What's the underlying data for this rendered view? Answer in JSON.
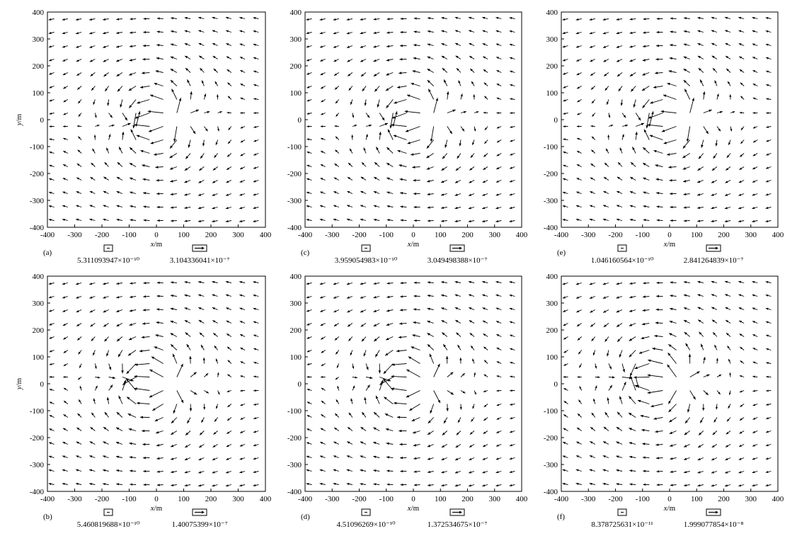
{
  "chart_data": [
    {
      "type": "quiver",
      "panel_label": "(a)",
      "xlabel": "x/m",
      "ylabel": "y/m",
      "xlim": [
        -400,
        400
      ],
      "ylim": [
        -400,
        400
      ],
      "xticks": [
        "-400",
        "-300",
        "-200",
        "-100",
        "0",
        "100",
        "200",
        "300",
        "400"
      ],
      "yticks": [
        "400",
        "300",
        "200",
        "100",
        "0",
        "-100",
        "-200",
        "-300",
        "-400"
      ],
      "min_vector_label": "5.311093947×10⁻¹⁰",
      "max_vector_label": "3.104336041×10⁻⁷",
      "sink_x": -65,
      "sink_y": -10,
      "source_x": 65,
      "source_y": 10,
      "grid_spacing": 50
    },
    {
      "type": "quiver",
      "panel_label": "(c)",
      "xlabel": "x/m",
      "ylabel": "",
      "xlim": [
        -400,
        400
      ],
      "ylim": [
        -400,
        400
      ],
      "xticks": [
        "-400",
        "-300",
        "-200",
        "-100",
        "0",
        "100",
        "200",
        "300",
        "400"
      ],
      "yticks": [
        "400",
        "300",
        "200",
        "100",
        "0",
        "-100",
        "-200",
        "-300",
        "-400"
      ],
      "min_vector_label": "3.959054983×10⁻¹⁰",
      "max_vector_label": "3.049498388×10⁻⁷",
      "sink_x": -65,
      "sink_y": -10,
      "source_x": 65,
      "source_y": 10,
      "grid_spacing": 50
    },
    {
      "type": "quiver",
      "panel_label": "(e)",
      "xlabel": "x/m",
      "ylabel": "",
      "xlim": [
        -400,
        400
      ],
      "ylim": [
        -400,
        400
      ],
      "xticks": [
        "-400",
        "-300",
        "-200",
        "-100",
        "0",
        "100",
        "200",
        "300",
        "400"
      ],
      "yticks": [
        "400",
        "300",
        "200",
        "100",
        "0",
        "-100",
        "-200",
        "-300",
        "-400"
      ],
      "min_vector_label": "1.046160564×10⁻¹⁰",
      "max_vector_label": "2.841264839×10⁻⁷",
      "sink_x": -65,
      "sink_y": -10,
      "source_x": 65,
      "source_y": 10,
      "grid_spacing": 50
    },
    {
      "type": "quiver",
      "panel_label": "(b)",
      "xlabel": "x/m",
      "ylabel": "y/m",
      "xlim": [
        -400,
        400
      ],
      "ylim": [
        -400,
        400
      ],
      "xticks": [
        "-400",
        "-300",
        "-200",
        "-100",
        "0",
        "100",
        "200",
        "300",
        "400"
      ],
      "yticks": [
        "400",
        "300",
        "200",
        "100",
        "0",
        "-100",
        "-200",
        "-300",
        "-400"
      ],
      "min_vector_label": "5.460819688×10⁻¹⁰",
      "max_vector_label": "1.40075399×10⁻⁷",
      "sink_x": -85,
      "sink_y": 15,
      "source_x": 50,
      "source_y": 0,
      "grid_spacing": 50
    },
    {
      "type": "quiver",
      "panel_label": "(d)",
      "xlabel": "x/m",
      "ylabel": "",
      "xlim": [
        -400,
        400
      ],
      "ylim": [
        -400,
        400
      ],
      "xticks": [
        "-400",
        "-300",
        "-200",
        "-100",
        "0",
        "100",
        "200",
        "300",
        "400"
      ],
      "yticks": [
        "400",
        "300",
        "200",
        "100",
        "0",
        "-100",
        "-200",
        "-300",
        "-400"
      ],
      "min_vector_label": "4.51096269×10⁻¹⁰",
      "max_vector_label": "1.372534675×10⁻⁷",
      "sink_x": -85,
      "sink_y": 15,
      "source_x": 50,
      "source_y": 0,
      "grid_spacing": 50
    },
    {
      "type": "quiver",
      "panel_label": "(f)",
      "xlabel": "x/m",
      "ylabel": "",
      "xlim": [
        -400,
        400
      ],
      "ylim": [
        -400,
        400
      ],
      "xticks": [
        "-400",
        "-300",
        "-200",
        "-100",
        "0",
        "100",
        "200",
        "300",
        "400"
      ],
      "yticks": [
        "400",
        "300",
        "200",
        "100",
        "0",
        "-100",
        "-200",
        "-300",
        "-400"
      ],
      "min_vector_label": "8.378725631×10⁻¹¹",
      "max_vector_label": "1.999077854×10⁻⁸",
      "sink_x": -120,
      "sink_y": 20,
      "source_x": 30,
      "source_y": 10,
      "grid_spacing": 50
    }
  ]
}
